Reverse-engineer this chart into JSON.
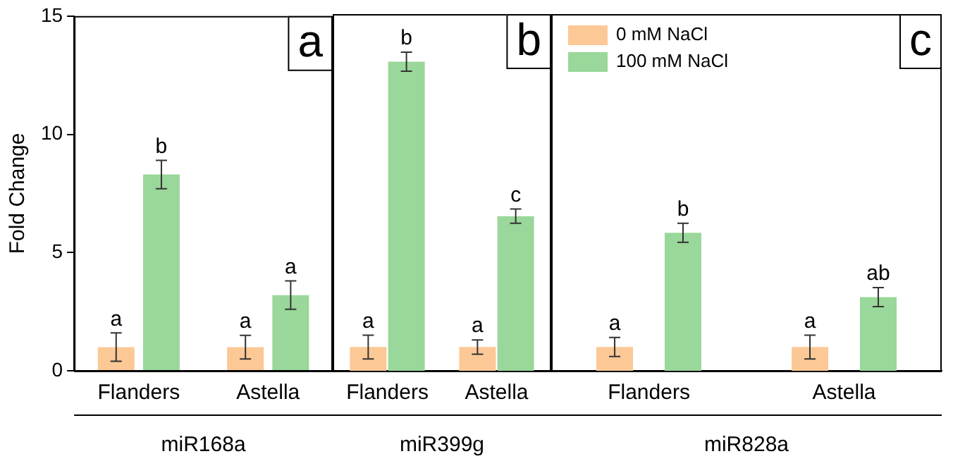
{
  "chart_data": [
    {
      "type": "bar",
      "title": "a",
      "xlabel": "miR168a",
      "ylabel": "Fold Change",
      "categories": [
        "Flanders",
        "Astella"
      ],
      "series": [
        {
          "color": "#fcc896",
          "values": [
            1,
            1
          ],
          "errors": [
            0.6,
            0.5
          ],
          "value_labels": [
            "a",
            "a"
          ]
        },
        {
          "color": "#9ad79a",
          "values": [
            8.3,
            3.2
          ],
          "errors": [
            0.6,
            0.6
          ],
          "value_labels": [
            "b",
            "a"
          ]
        }
      ],
      "ylim": [
        0,
        15
      ],
      "yticks": [
        0,
        5,
        10,
        15
      ],
      "grid": false,
      "legend": false
    },
    {
      "type": "bar",
      "title": "b",
      "xlabel": "miR399g",
      "categories": [
        "Flanders",
        "Astella"
      ],
      "series": [
        {
          "color": "#fcc896",
          "values": [
            1,
            1
          ],
          "errors": [
            0.5,
            0.3
          ],
          "value_labels": [
            "a",
            "a"
          ]
        },
        {
          "color": "#9ad79a",
          "values": [
            13,
            6.5
          ],
          "errors": [
            0.4,
            0.3
          ],
          "value_labels": [
            "b",
            "c"
          ]
        }
      ],
      "ylim": [
        0,
        15
      ],
      "yticks": [
        0,
        5,
        10,
        15
      ],
      "tick_labels": "x",
      "grid": false,
      "legend": false
    },
    {
      "type": "bar",
      "title": "c",
      "xlabel": "miR828a",
      "categories": [
        "Flanders",
        "Astella"
      ],
      "series": [
        {
          "name": "0 mM NaCl",
          "color": "#fcc896",
          "values": [
            1,
            1
          ],
          "errors": [
            0.4,
            0.5
          ],
          "value_labels": [
            "a",
            "a"
          ]
        },
        {
          "name": "100 mM NaCl",
          "color": "#9ad79a",
          "values": [
            5.8,
            3.1
          ],
          "errors": [
            0.4,
            0.4
          ],
          "value_labels": [
            "b",
            "ab"
          ]
        }
      ],
      "ylim": [
        0,
        15
      ],
      "yticks": [
        0,
        5,
        10,
        15
      ],
      "tick_labels": "x",
      "grid": false,
      "legend": "top left"
    }
  ]
}
